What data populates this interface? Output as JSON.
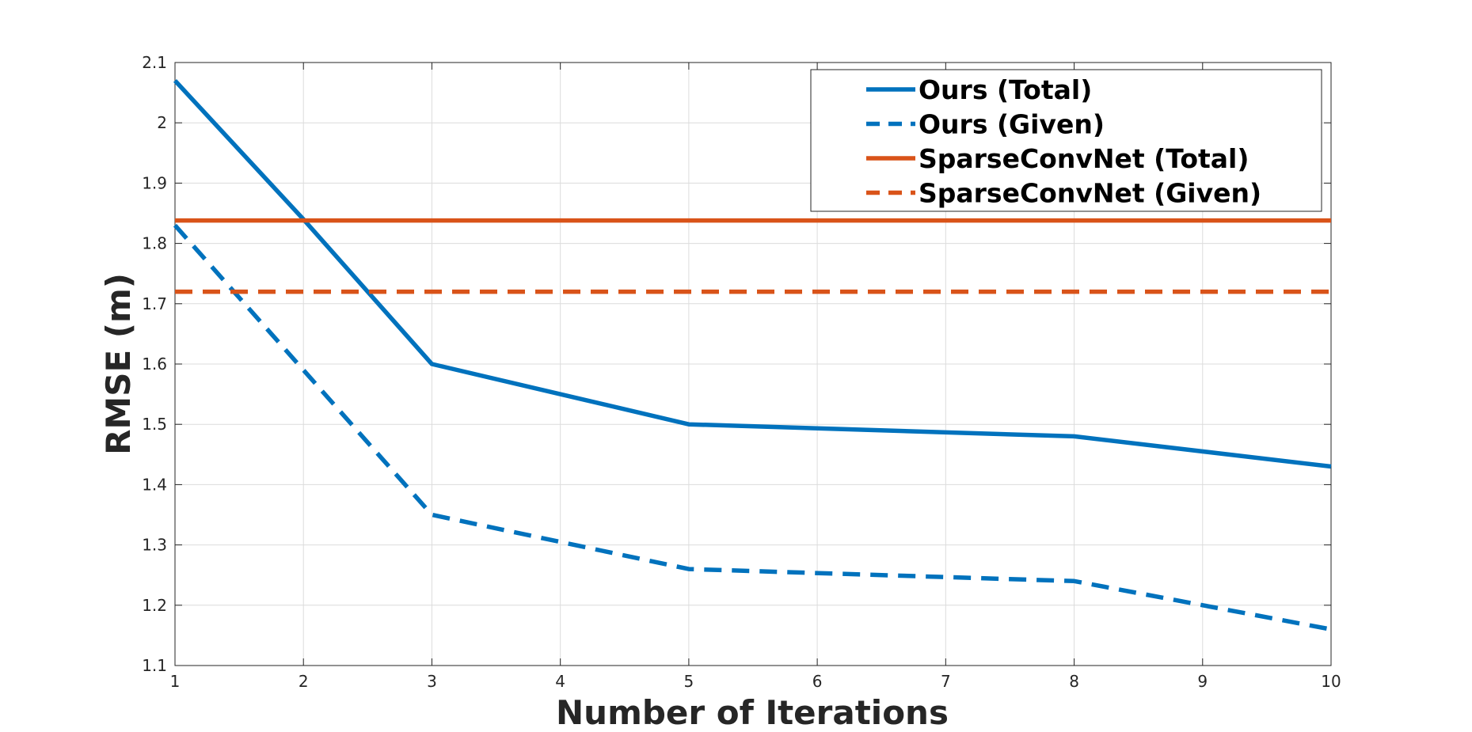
{
  "chart_data": {
    "type": "line",
    "title": "",
    "xlabel": "Number of Iterations",
    "ylabel": "RMSE (m)",
    "xlim": [
      1,
      10
    ],
    "ylim": [
      1.1,
      2.1
    ],
    "xticks": [
      "1",
      "2",
      "3",
      "4",
      "5",
      "6",
      "7",
      "8",
      "9",
      "10"
    ],
    "yticks": [
      "1.1",
      "1.2",
      "1.3",
      "1.4",
      "1.5",
      "1.6",
      "1.7",
      "1.8",
      "1.9",
      "2",
      "2.1"
    ],
    "grid": true,
    "legend_position": "top-right",
    "series": [
      {
        "name": "Ours (Total)",
        "color": "#0072BD",
        "style": "solid",
        "x": [
          1,
          2,
          3,
          5,
          8,
          10
        ],
        "y": [
          2.07,
          1.84,
          1.6,
          1.5,
          1.48,
          1.43
        ]
      },
      {
        "name": "Ours (Given)",
        "color": "#0072BD",
        "style": "dashed",
        "x": [
          1,
          3,
          5,
          8,
          10
        ],
        "y": [
          1.83,
          1.35,
          1.26,
          1.24,
          1.16
        ]
      },
      {
        "name": "SparseConvNet (Total)",
        "color": "#D95319",
        "style": "solid",
        "x": [
          1,
          10
        ],
        "y": [
          1.838,
          1.838
        ]
      },
      {
        "name": "SparseConvNet (Given)",
        "color": "#D95319",
        "style": "dashed",
        "x": [
          1,
          10
        ],
        "y": [
          1.72,
          1.72
        ]
      }
    ]
  }
}
